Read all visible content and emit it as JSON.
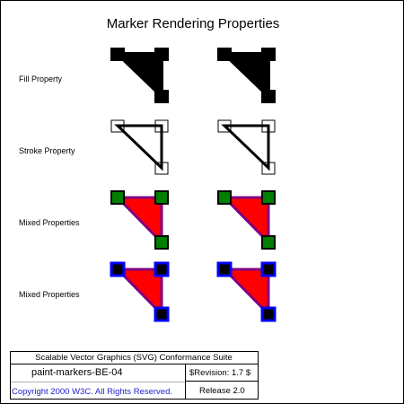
{
  "title": "Marker Rendering Properties",
  "rows": [
    {
      "label": "Fill Property"
    },
    {
      "label": "Stroke Property"
    },
    {
      "label": "Mixed Properties"
    },
    {
      "label": "Mixed Properties"
    }
  ],
  "legend": {
    "suite": "Scalable Vector Graphics (SVG) Conformance Suite",
    "test_name": "paint-markers-BE-04",
    "revision": "$Revision: 1.7 $",
    "copyright": "Copyright 2000 W3C. All Rights Reserved.",
    "release": "Release 2.0"
  },
  "colors": {
    "red_fill": "#ff0000",
    "purple_stroke": "#800080",
    "green_marker": "#008000",
    "blue_marker": "#0000ff",
    "black": "#000000",
    "copyright_blue": "#2222cc"
  }
}
